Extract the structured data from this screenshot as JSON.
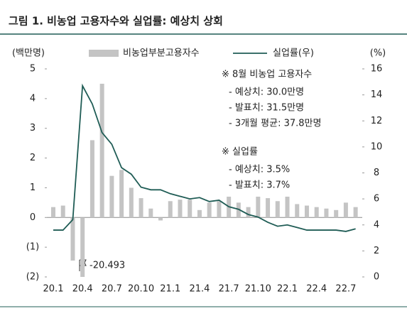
{
  "chart_data": {
    "type": "bar-line",
    "title": "그림 1. 비농업 고용자수와 실업률: 예상치 상회",
    "y_label": "(백만명)",
    "y2_label": "(%)",
    "categories": [
      "20.1",
      null,
      null,
      "20.4",
      null,
      null,
      "20.7",
      null,
      null,
      "20.10",
      null,
      null,
      "21.1",
      null,
      null,
      "21.4",
      null,
      null,
      "21.7",
      null,
      null,
      "21.10",
      null,
      null,
      "22.1",
      null,
      null,
      "22.4",
      null,
      null,
      "22.7",
      null
    ],
    "series": [
      {
        "name": "비농업부분고용자수",
        "type": "bar",
        "color": "#c4c4c4",
        "values": [
          0.35,
          0.4,
          -1.45,
          -2.0,
          2.6,
          4.5,
          1.4,
          1.6,
          1.0,
          0.65,
          0.3,
          -0.1,
          0.55,
          0.6,
          0.6,
          0.25,
          0.5,
          0.55,
          0.7,
          0.5,
          0.35,
          0.7,
          0.65,
          0.55,
          0.7,
          0.45,
          0.4,
          0.35,
          0.3,
          0.25,
          0.5,
          0.35
        ]
      },
      {
        "name": "실업률(우)",
        "type": "line",
        "axis": "y2",
        "color": "#1f5c55",
        "values": [
          3.6,
          3.6,
          4.4,
          14.7,
          13.3,
          11.1,
          10.2,
          8.4,
          7.9,
          6.9,
          6.7,
          6.7,
          6.4,
          6.2,
          6.0,
          6.1,
          5.8,
          5.9,
          5.4,
          5.2,
          4.8,
          4.6,
          4.2,
          3.9,
          4.0,
          3.8,
          3.6,
          3.6,
          3.6,
          3.6,
          3.5,
          3.7
        ]
      }
    ],
    "ylim": [
      -2,
      5
    ],
    "yticks": [
      {
        "value": -2,
        "label": "(2)"
      },
      {
        "value": -1,
        "label": "(1)"
      },
      0,
      1,
      2,
      3,
      4,
      5
    ],
    "y2lim": [
      0,
      16
    ],
    "y2ticks": [
      0,
      2,
      4,
      6,
      8,
      10,
      12,
      14,
      16
    ],
    "callout": "-20.493",
    "annotations": [
      "※ 8월 비농업 고용자수",
      "- 예상치: 30.0만명",
      "- 발표치: 31.5만명",
      "- 3개월 평균: 37.8만명",
      "※ 실업률",
      "- 예상치: 3.5%",
      "- 발표치: 3.7%"
    ],
    "legend": "top"
  }
}
